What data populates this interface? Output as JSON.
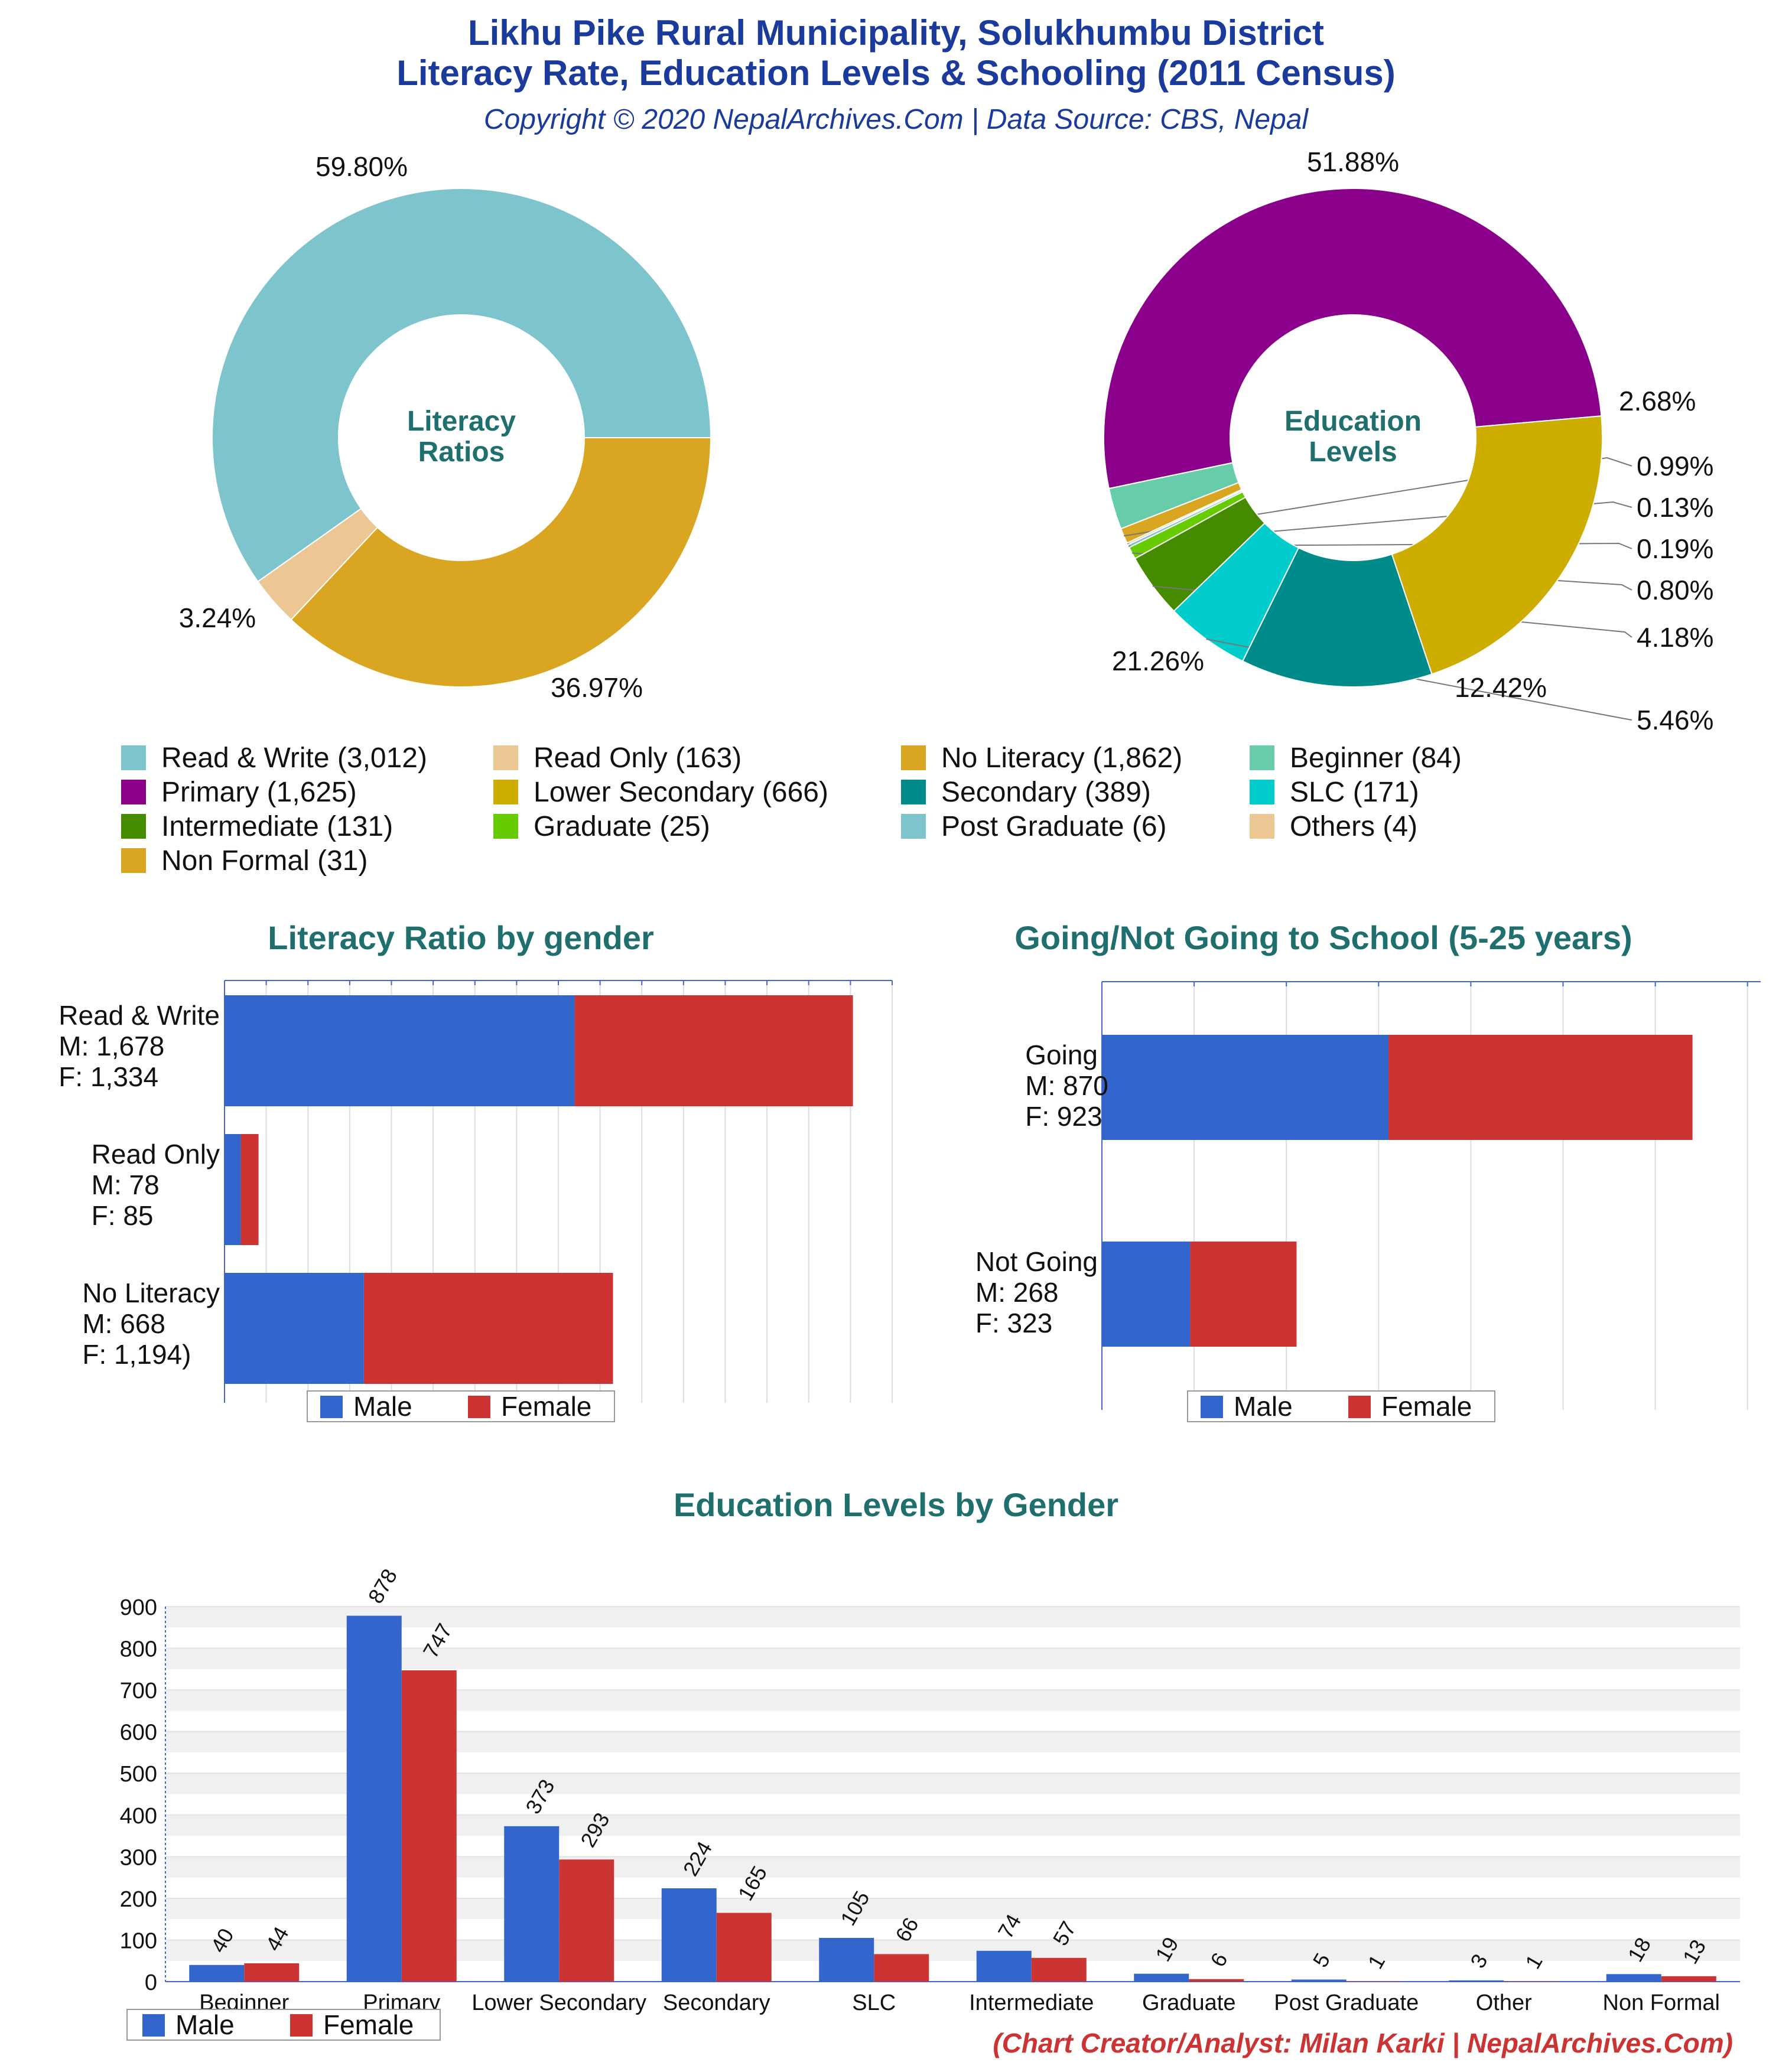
{
  "header": {
    "title_line1": "Likhu Pike Rural Municipality, Solukhumbu District",
    "title_line2": "Literacy Rate, Education Levels & Schooling (2011 Census)",
    "subtitle": "Copyright © 2020 NepalArchives.Com | Data Source: CBS, Nepal"
  },
  "colors": {
    "male": "#3366cc",
    "female": "#cc3333",
    "title_blue": "#1a3a9c",
    "section_teal": "#1f6f6f"
  },
  "legend_top": [
    [
      "Read & Write (3,012)",
      "Read Only (163)",
      "No Literacy (1,862)",
      "Beginner (84)"
    ],
    [
      "Primary (1,625)",
      "Lower Secondary (666)",
      "Secondary (389)",
      "SLC (171)"
    ],
    [
      "Intermediate (131)",
      "Graduate (25)",
      "Post Graduate (6)",
      "Others (4)"
    ],
    [
      "Non Formal (31)"
    ]
  ],
  "legend_top_colors": [
    [
      "#7ec4cc",
      "#ecc793",
      "#daa520",
      "#66ccaa"
    ],
    [
      "#8b008b",
      "#ccad00",
      "#008b8b",
      "#00cccc"
    ],
    [
      "#458b00",
      "#66cc00",
      "#7ec4cc",
      "#ecc793"
    ],
    [
      "#daa520"
    ]
  ],
  "bar_legend": {
    "male": "Male",
    "female": "Female"
  },
  "chart_data": [
    {
      "type": "pie",
      "title": "Literacy Ratios",
      "slices": [
        {
          "label": "Read & Write",
          "value": 3012,
          "percent_label": "59.80%",
          "color": "#7ec4cc"
        },
        {
          "label": "Read Only",
          "value": 163,
          "percent_label": "3.24%",
          "color": "#ecc793"
        },
        {
          "label": "No Literacy",
          "value": 1862,
          "percent_label": "36.97%",
          "color": "#daa520"
        }
      ]
    },
    {
      "type": "pie",
      "title": "Education Levels",
      "slices": [
        {
          "label": "Primary",
          "value": 1625,
          "percent_label": "51.88%",
          "color": "#8b008b"
        },
        {
          "label": "Beginner",
          "value": 84,
          "percent_label": "2.68%",
          "color": "#66ccaa"
        },
        {
          "label": "Non Formal",
          "value": 31,
          "percent_label": "0.99%",
          "color": "#daa520"
        },
        {
          "label": "Others",
          "value": 4,
          "percent_label": "0.13%",
          "color": "#ecc793"
        },
        {
          "label": "Post Graduate",
          "value": 6,
          "percent_label": "0.19%",
          "color": "#7ec4cc"
        },
        {
          "label": "Graduate",
          "value": 25,
          "percent_label": "0.80%",
          "color": "#66cc00"
        },
        {
          "label": "Intermediate",
          "value": 131,
          "percent_label": "4.18%",
          "color": "#458b00"
        },
        {
          "label": "SLC",
          "value": 171,
          "percent_label": "5.46%",
          "color": "#00cccc"
        },
        {
          "label": "Secondary",
          "value": 389,
          "percent_label": "12.42%",
          "color": "#008b8b"
        },
        {
          "label": "Lower Secondary",
          "value": 666,
          "percent_label": "21.26%",
          "color": "#ccad00"
        }
      ]
    },
    {
      "type": "bar",
      "orientation": "horizontal",
      "stacked": true,
      "title": "Literacy Ratio by gender",
      "categories": [
        "Read & Write",
        "Read Only",
        "No Literacy"
      ],
      "category_labels": [
        [
          "Read & Write",
          "M: 1,678",
          "F: 1,334"
        ],
        [
          "Read Only",
          "M: 78",
          "F: 85"
        ],
        [
          "No Literacy",
          "M: 668",
          "F: 1,194)"
        ]
      ],
      "series": [
        {
          "name": "Male",
          "values": [
            1678,
            78,
            668
          ]
        },
        {
          "name": "Female",
          "values": [
            1334,
            85,
            1194
          ]
        }
      ],
      "xlim": [
        0,
        3200
      ],
      "legend": "bottom"
    },
    {
      "type": "bar",
      "orientation": "horizontal",
      "stacked": true,
      "title": "Going/Not Going to School (5-25 years)",
      "categories": [
        "Going",
        "Not Going"
      ],
      "category_labels": [
        [
          "Going",
          "M: 870",
          "F: 923"
        ],
        [
          "Not Going",
          "M: 268",
          "F: 323"
        ]
      ],
      "series": [
        {
          "name": "Male",
          "values": [
            870,
            268
          ]
        },
        {
          "name": "Female",
          "values": [
            923,
            323
          ]
        }
      ],
      "xlim": [
        0,
        2000
      ],
      "legend": "bottom"
    },
    {
      "type": "bar",
      "title": "Education Levels by Gender",
      "categories": [
        "Beginner",
        "Primary",
        "Lower Secondary",
        "Secondary",
        "SLC",
        "Intermediate",
        "Graduate",
        "Post Graduate",
        "Other",
        "Non Formal"
      ],
      "series": [
        {
          "name": "Male",
          "values": [
            40,
            878,
            373,
            224,
            105,
            74,
            19,
            5,
            3,
            18
          ]
        },
        {
          "name": "Female",
          "values": [
            44,
            747,
            293,
            165,
            66,
            57,
            6,
            1,
            1,
            13
          ]
        }
      ],
      "ylim": [
        0,
        900
      ],
      "yticks": [
        0,
        100,
        200,
        300,
        400,
        500,
        600,
        700,
        800,
        900
      ],
      "legend": "bottom-left"
    }
  ],
  "footer": "(Chart Creator/Analyst: Milan Karki | NepalArchives.Com)"
}
